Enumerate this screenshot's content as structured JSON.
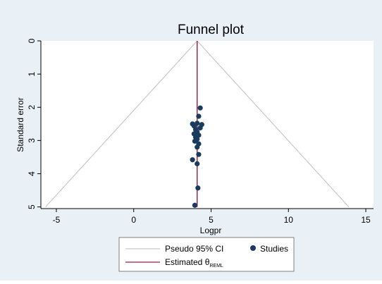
{
  "chart_data": {
    "type": "scatter",
    "title": "Funnel plot",
    "xlabel": "Logpr",
    "ylabel": "Standard error",
    "xlim": [
      -6,
      15.5
    ],
    "ylim": [
      0,
      5.05
    ],
    "y_reversed": true,
    "xticks": [
      -5,
      0,
      5,
      10,
      15
    ],
    "yticks": [
      0,
      1,
      2,
      3,
      4,
      5
    ],
    "grid": false,
    "estimate": 4.1,
    "series": [
      {
        "name": "Studies",
        "points": [
          {
            "x": 4.3,
            "y": 2.02
          },
          {
            "x": 4.2,
            "y": 2.27
          },
          {
            "x": 3.8,
            "y": 2.5
          },
          {
            "x": 4.1,
            "y": 2.48
          },
          {
            "x": 4.4,
            "y": 2.52
          },
          {
            "x": 3.9,
            "y": 2.56
          },
          {
            "x": 4.3,
            "y": 2.62
          },
          {
            "x": 4.0,
            "y": 2.67
          },
          {
            "x": 4.1,
            "y": 2.74
          },
          {
            "x": 3.9,
            "y": 2.8
          },
          {
            "x": 4.2,
            "y": 2.84
          },
          {
            "x": 4.0,
            "y": 2.9
          },
          {
            "x": 4.1,
            "y": 2.96
          },
          {
            "x": 3.95,
            "y": 3.02
          },
          {
            "x": 4.2,
            "y": 3.1
          },
          {
            "x": 4.1,
            "y": 3.2
          },
          {
            "x": 4.2,
            "y": 3.42
          },
          {
            "x": 3.8,
            "y": 3.58
          },
          {
            "x": 4.1,
            "y": 3.7
          },
          {
            "x": 4.15,
            "y": 4.43
          },
          {
            "x": 3.95,
            "y": 4.95
          }
        ]
      }
    ],
    "legend": {
      "placement": "bottom",
      "ci_label": "Pseudo 95% CI",
      "studies_label": "Studies",
      "estimate_label": "Estimated θ",
      "estimate_subscript": "REML"
    },
    "colors": {
      "background": "#e9f0f6",
      "plot_area": "#ffffff",
      "ci_lines": "#c8c8c8",
      "estimate_line": "#9c1c3c",
      "points": "#1a3a5e"
    }
  }
}
